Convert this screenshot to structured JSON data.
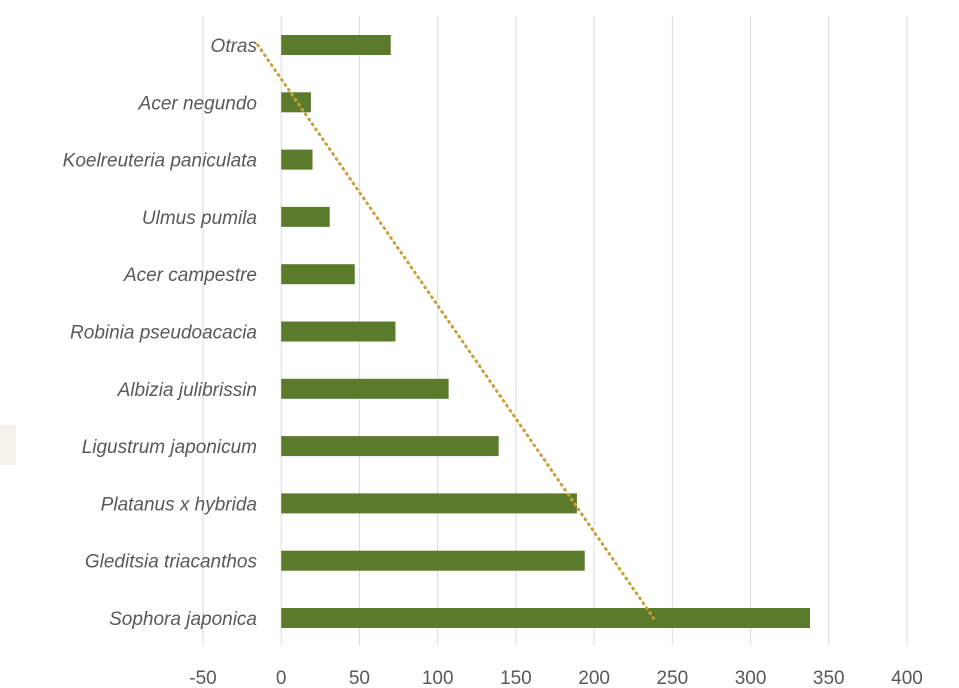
{
  "chart_data": {
    "type": "bar",
    "orientation": "horizontal",
    "categories": [
      "Otras",
      "Acer negundo",
      "Koelreuteria paniculata",
      "Ulmus pumila",
      "Acer campestre",
      "Robinia pseudoacacia",
      "Albizia julibrissin",
      "Ligustrum japonicum",
      "Platanus x hybrida",
      "Gleditsia triacanthos",
      "Sophora japonica"
    ],
    "values": [
      70,
      19,
      20,
      31,
      47,
      73,
      107,
      139,
      189,
      194,
      338
    ],
    "xlim": [
      -50,
      400
    ],
    "xticks": [
      "-50",
      "0",
      "50",
      "100",
      "150",
      "200",
      "250",
      "300",
      "350",
      "400"
    ],
    "grid": true,
    "bar_color": "#5b7a2b",
    "trendline": {
      "type": "linear",
      "style": "dotted",
      "color": "#c9a03a",
      "points": [
        [
          -15,
          0
        ],
        [
          238,
          10
        ]
      ]
    }
  }
}
